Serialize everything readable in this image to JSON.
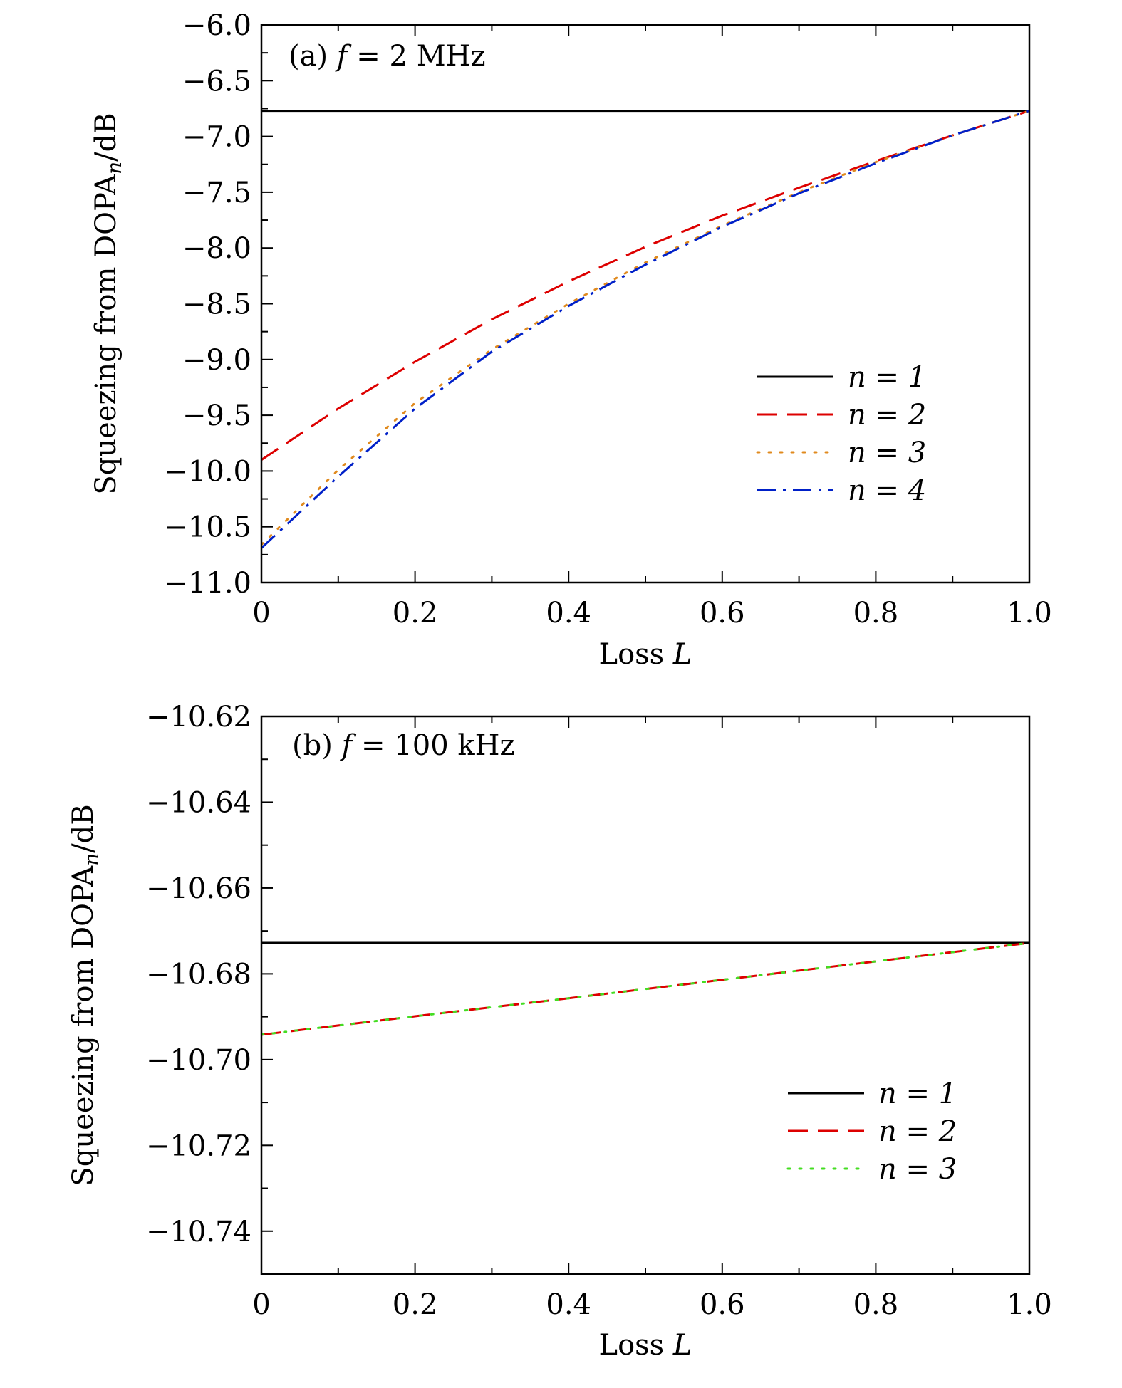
{
  "chart_data": [
    {
      "type": "line",
      "annotation": "(a)  f = 2 MHz",
      "xlabel": "Loss L",
      "ylabel": "Squeezing from DOPA",
      "ylabel_sub": "n",
      "ylabel_unit": "/dB",
      "xlim": [
        0,
        1.0
      ],
      "ylim": [
        -11.0,
        -6.0
      ],
      "xticks": [
        0,
        0.2,
        0.4,
        0.6,
        0.8,
        1.0
      ],
      "xtick_labels": [
        "0",
        "0.2",
        "0.4",
        "0.6",
        "0.8",
        "1.0"
      ],
      "yticks": [
        -6.0,
        -6.5,
        -7.0,
        -7.5,
        -8.0,
        -8.5,
        -9.0,
        -9.5,
        -10.0,
        -10.5,
        -11.0
      ],
      "ytick_labels": [
        "−6.0",
        "−6.5",
        "−7.0",
        "−7.5",
        "−8.0",
        "−8.5",
        "−9.0",
        "−9.5",
        "−10.0",
        "−10.5",
        "−11.0"
      ],
      "legend_position": "right",
      "series": [
        {
          "name": "n = 1",
          "color": "#000000",
          "dash": "solid",
          "x": [
            0,
            1.0
          ],
          "y": [
            -6.77,
            -6.77
          ]
        },
        {
          "name": "n = 2",
          "color": "#dd0000",
          "dash": "dash",
          "x": [
            0,
            0.1,
            0.2,
            0.3,
            0.4,
            0.5,
            0.6,
            0.7,
            0.8,
            0.9,
            1.0
          ],
          "y": [
            -9.9,
            -9.44,
            -9.02,
            -8.64,
            -8.3,
            -7.99,
            -7.71,
            -7.46,
            -7.22,
            -6.99,
            -6.77
          ]
        },
        {
          "name": "n = 3",
          "color": "#e08a1e",
          "dash": "dot",
          "x": [
            0,
            0.1,
            0.2,
            0.3,
            0.4,
            0.5,
            0.6,
            0.7,
            0.8,
            0.9,
            1.0
          ],
          "y": [
            -10.66,
            -9.99,
            -9.39,
            -8.91,
            -8.5,
            -8.13,
            -7.8,
            -7.5,
            -7.23,
            -6.99,
            -6.77
          ]
        },
        {
          "name": "n = 4",
          "color": "#0020c8",
          "dash": "dashdot",
          "x": [
            0,
            0.1,
            0.2,
            0.3,
            0.4,
            0.5,
            0.6,
            0.7,
            0.8,
            0.9,
            1.0
          ],
          "y": [
            -10.69,
            -10.05,
            -9.44,
            -8.93,
            -8.52,
            -8.15,
            -7.81,
            -7.51,
            -7.24,
            -6.99,
            -6.77
          ]
        }
      ]
    },
    {
      "type": "line",
      "annotation": "(b)  f = 100 kHz",
      "xlabel": "Loss L",
      "ylabel": "Squeezing from DOPA",
      "ylabel_sub": "n",
      "ylabel_unit": "/dB",
      "xlim": [
        0,
        1.0
      ],
      "ylim": [
        -10.75,
        -10.62
      ],
      "xticks": [
        0,
        0.2,
        0.4,
        0.6,
        0.8,
        1.0
      ],
      "xtick_labels": [
        "0",
        "0.2",
        "0.4",
        "0.6",
        "0.8",
        "1.0"
      ],
      "yticks": [
        -10.62,
        -10.64,
        -10.66,
        -10.68,
        -10.7,
        -10.72,
        -10.74
      ],
      "ytick_labels": [
        "−10.62",
        "−10.64",
        "−10.66",
        "−10.68",
        "−10.70",
        "−10.72",
        "−10.74"
      ],
      "legend_position": "lower right",
      "series": [
        {
          "name": "n = 1",
          "color": "#000000",
          "dash": "solid",
          "x": [
            0,
            1.0
          ],
          "y": [
            -10.6728,
            -10.6728
          ]
        },
        {
          "name": "n = 2",
          "color": "#dd0000",
          "dash": "dash",
          "x": [
            0,
            0.2,
            0.4,
            0.6,
            0.8,
            1.0
          ],
          "y": [
            -10.6942,
            -10.6899,
            -10.6857,
            -10.6814,
            -10.6771,
            -10.6728
          ]
        },
        {
          "name": "n = 3",
          "color": "#44dd22",
          "dash": "dot",
          "x": [
            0,
            0.2,
            0.4,
            0.6,
            0.8,
            1.0
          ],
          "y": [
            -10.6942,
            -10.6899,
            -10.6857,
            -10.6814,
            -10.6771,
            -10.6728
          ]
        }
      ]
    }
  ]
}
